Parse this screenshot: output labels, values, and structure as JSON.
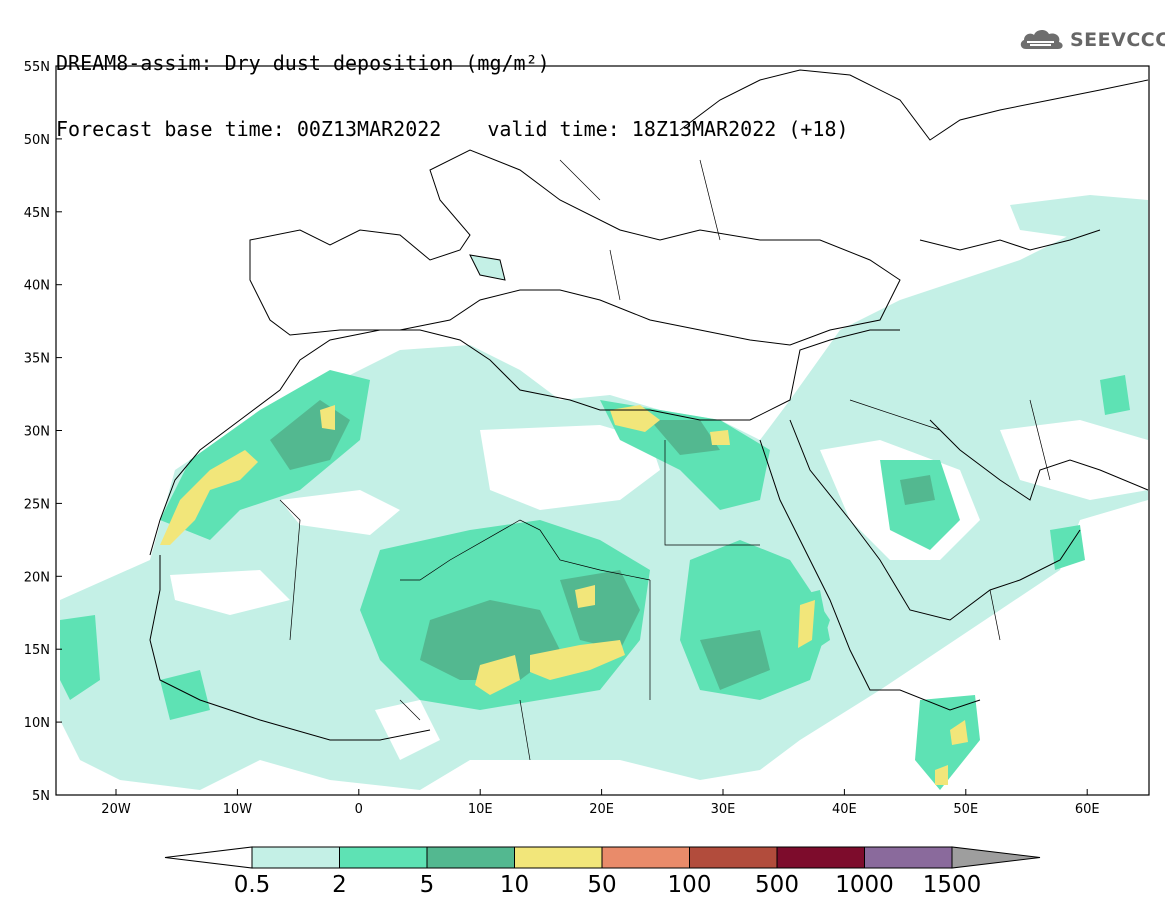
{
  "header": {
    "title": "DREAM8-assim: Dry dust deposition (mg/m²)",
    "base_time": "Forecast base time: 00Z13MAR2022",
    "valid_time": "valid time: 18Z13MAR2022 (+18)"
  },
  "logo": {
    "text": "SEEVCCC",
    "icon": "cloud-icon"
  },
  "map": {
    "lat_labels": [
      "55N",
      "50N",
      "45N",
      "40N",
      "35N",
      "30N",
      "25N",
      "20N",
      "15N",
      "10N",
      "5N"
    ],
    "lon_labels": [
      "20W",
      "10W",
      "0",
      "10E",
      "20E",
      "30E",
      "40E",
      "50E",
      "60E"
    ]
  },
  "colorbar": {
    "labels": [
      "0.5",
      "2",
      "5",
      "10",
      "50",
      "100",
      "500",
      "1000",
      "1500"
    ],
    "colors": [
      "#c4f0e6",
      "#5ee2b4",
      "#53b890",
      "#f2e67a",
      "#e98b6a",
      "#b24c3c",
      "#7d0c2c",
      "#8a6a9c",
      "#9e9e9e"
    ]
  }
}
